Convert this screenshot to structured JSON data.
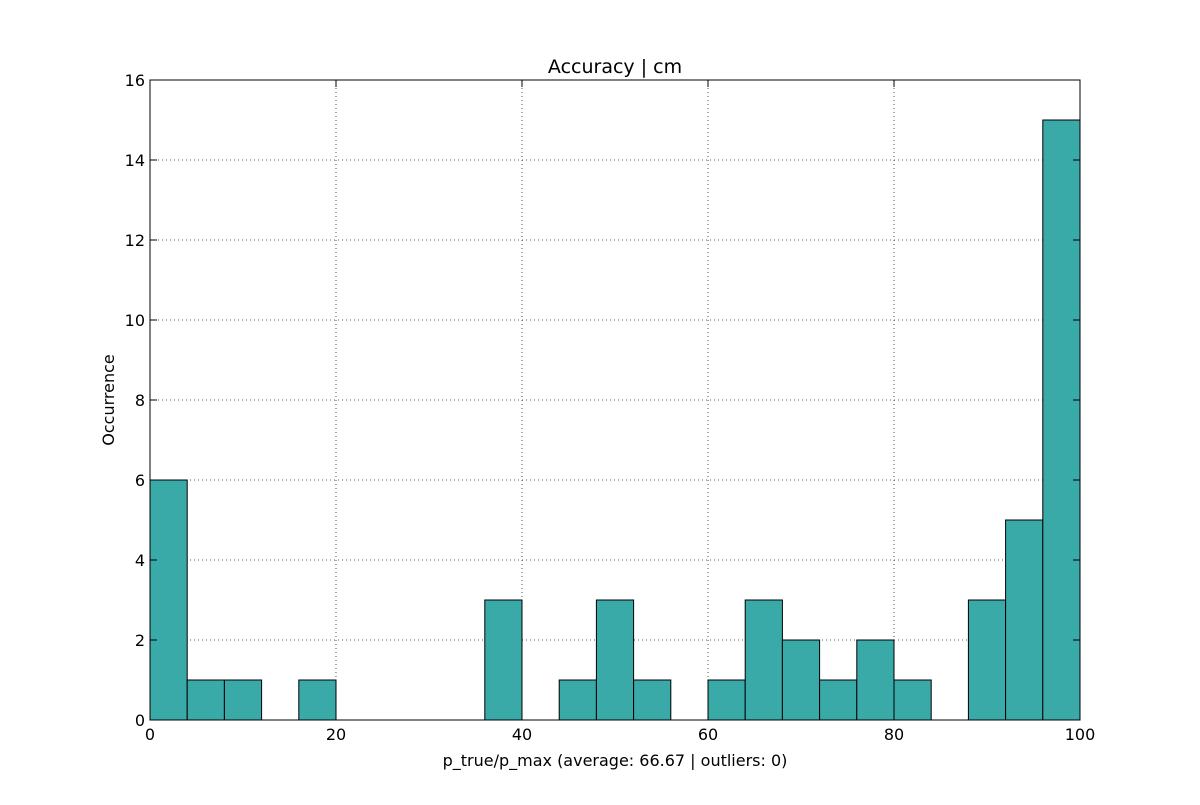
{
  "chart_data": {
    "type": "bar",
    "title": "Accuracy | cm",
    "xlabel": "p_true/p_max (average: 66.67 | outliers: 0)",
    "ylabel": "Occurrence",
    "xlim": [
      0,
      100
    ],
    "ylim": [
      0,
      16
    ],
    "xticks": [
      0,
      20,
      40,
      60,
      80,
      100
    ],
    "xtick_labels": [
      "0",
      "20",
      "40",
      "60",
      "80",
      "100"
    ],
    "yticks": [
      0,
      2,
      4,
      6,
      8,
      10,
      12,
      14,
      16
    ],
    "ytick_labels": [
      "0",
      "2",
      "4",
      "6",
      "8",
      "10",
      "12",
      "14",
      "16"
    ],
    "grid": true,
    "colors": {
      "bar_fill": "#3aaaa8",
      "bar_edge": "#000000",
      "grid": "#555555"
    },
    "bins": [
      {
        "start": 0,
        "end": 4,
        "count": 6
      },
      {
        "start": 4,
        "end": 8,
        "count": 1
      },
      {
        "start": 8,
        "end": 12,
        "count": 1
      },
      {
        "start": 12,
        "end": 16,
        "count": 0
      },
      {
        "start": 16,
        "end": 20,
        "count": 1
      },
      {
        "start": 20,
        "end": 24,
        "count": 0
      },
      {
        "start": 24,
        "end": 28,
        "count": 0
      },
      {
        "start": 28,
        "end": 32,
        "count": 0
      },
      {
        "start": 32,
        "end": 36,
        "count": 0
      },
      {
        "start": 36,
        "end": 40,
        "count": 3
      },
      {
        "start": 40,
        "end": 44,
        "count": 0
      },
      {
        "start": 44,
        "end": 48,
        "count": 1
      },
      {
        "start": 48,
        "end": 52,
        "count": 3
      },
      {
        "start": 52,
        "end": 56,
        "count": 1
      },
      {
        "start": 56,
        "end": 60,
        "count": 0
      },
      {
        "start": 60,
        "end": 64,
        "count": 1
      },
      {
        "start": 64,
        "end": 68,
        "count": 3
      },
      {
        "start": 68,
        "end": 72,
        "count": 2
      },
      {
        "start": 72,
        "end": 76,
        "count": 1
      },
      {
        "start": 76,
        "end": 80,
        "count": 2
      },
      {
        "start": 80,
        "end": 84,
        "count": 1
      },
      {
        "start": 84,
        "end": 88,
        "count": 0
      },
      {
        "start": 88,
        "end": 92,
        "count": 3
      },
      {
        "start": 92,
        "end": 96,
        "count": 5
      },
      {
        "start": 96,
        "end": 100,
        "count": 15
      }
    ]
  }
}
